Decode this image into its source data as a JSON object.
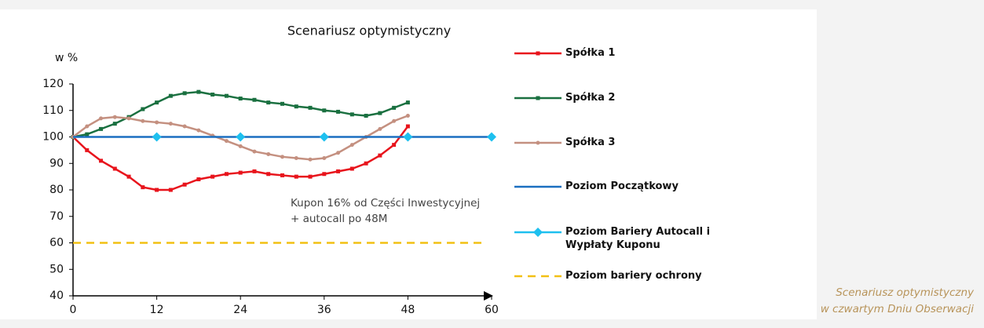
{
  "chart_data": {
    "type": "line",
    "title": "Scenariusz optymistyczny",
    "ylabel": "w %",
    "xlim": [
      0,
      60
    ],
    "xticks": [
      0,
      12,
      24,
      36,
      48,
      60
    ],
    "ylim": [
      40,
      120
    ],
    "yticks": [
      40,
      50,
      60,
      70,
      80,
      90,
      100,
      110,
      120
    ],
    "annotations": [
      "Kupon 16% od Części Inwestycyjnej",
      "+ autocall po 48M"
    ],
    "caption": [
      "Scenariusz optymistyczny",
      "w czwartym Dniu Obserwacji"
    ],
    "series": [
      {
        "name": "Spółka 1",
        "color": "#e8141c",
        "marker": "square",
        "dash": false,
        "x": [
          0,
          2,
          4,
          6,
          8,
          10,
          12,
          14,
          16,
          18,
          20,
          22,
          24,
          26,
          28,
          30,
          32,
          34,
          36,
          38,
          40,
          42,
          44,
          46,
          48
        ],
        "values": [
          100,
          95,
          91,
          88,
          85,
          81,
          80,
          80,
          82,
          84,
          85,
          86,
          86.5,
          87,
          86,
          85.5,
          85,
          85,
          86,
          87,
          88,
          90,
          93,
          97,
          104
        ]
      },
      {
        "name": "Spółka 2",
        "color": "#1a7040",
        "marker": "square",
        "dash": false,
        "x": [
          0,
          2,
          4,
          6,
          8,
          10,
          12,
          14,
          16,
          18,
          20,
          22,
          24,
          26,
          28,
          30,
          32,
          34,
          36,
          38,
          40,
          42,
          44,
          46,
          48
        ],
        "values": [
          100,
          101,
          103,
          105,
          107.5,
          110.5,
          113,
          115.5,
          116.5,
          117,
          116,
          115.5,
          114.5,
          114,
          113,
          112.5,
          111.5,
          111,
          110,
          109.5,
          108.5,
          108,
          109,
          111,
          113
        ]
      },
      {
        "name": "Spółka 3",
        "color": "#c49080",
        "marker": "circle",
        "dash": false,
        "x": [
          0,
          2,
          4,
          6,
          8,
          10,
          12,
          14,
          16,
          18,
          20,
          22,
          24,
          26,
          28,
          30,
          32,
          34,
          36,
          38,
          40,
          42,
          44,
          46,
          48
        ],
        "values": [
          100,
          104,
          107,
          107.5,
          107,
          106,
          105.5,
          105,
          104,
          102.5,
          100.5,
          98.5,
          96.5,
          94.5,
          93.5,
          92.5,
          92,
          91.5,
          92,
          94,
          97,
          100,
          103,
          106,
          108
        ]
      },
      {
        "name": "Poziom Początkowy",
        "color": "#1b6fc0",
        "marker": "none",
        "dash": false,
        "x": [
          0,
          60
        ],
        "values": [
          100,
          100
        ]
      },
      {
        "name": "Poziom Bariery Autocall i Wypłaty Kuponu",
        "color": "#1ec0ef",
        "marker": "diamond",
        "dash": false,
        "line": false,
        "x": [
          12,
          24,
          36,
          48,
          60
        ],
        "values": [
          100,
          100,
          100,
          100,
          100
        ]
      },
      {
        "name": "Poziom bariery ochrony",
        "color": "#f2c014",
        "marker": "none",
        "dash": true,
        "x": [
          0,
          59
        ],
        "values": [
          60,
          60
        ]
      }
    ]
  }
}
